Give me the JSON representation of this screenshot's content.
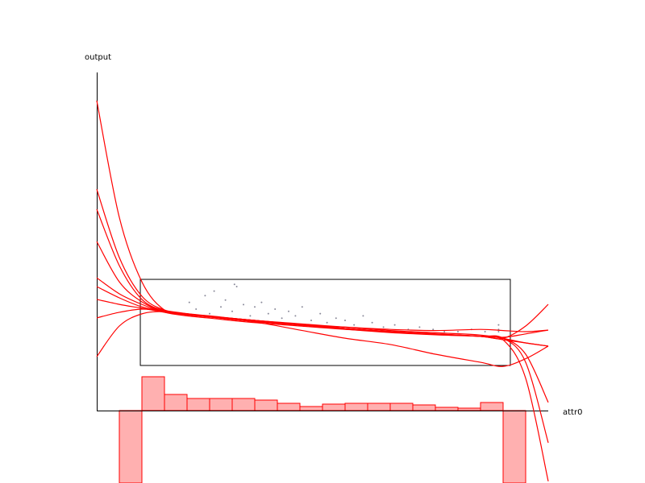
{
  "chart_data": {
    "type": "line",
    "x_label": "attr0",
    "y_label": "output",
    "xlim": [
      -1,
      19
    ],
    "ylim": [
      0,
      15
    ],
    "x": [
      -1,
      0,
      1,
      2,
      3,
      4,
      6,
      8,
      10,
      12,
      14,
      16,
      17,
      18,
      19
    ],
    "line_color": "#ff0000",
    "series": [
      {
        "values": [
          13.75,
          8.57,
          5.71,
          4.46,
          4.29,
          4.18,
          4.0,
          3.82,
          3.64,
          3.5,
          3.39,
          3.29,
          3.14,
          1.43,
          -3.14
        ]
      },
      {
        "values": [
          9.82,
          6.79,
          5.07,
          4.46,
          4.29,
          4.18,
          4.0,
          3.79,
          3.61,
          3.46,
          3.36,
          3.29,
          3.21,
          2.14,
          -1.43
        ]
      },
      {
        "values": [
          8.93,
          6.43,
          4.93,
          4.43,
          4.29,
          4.18,
          4.0,
          3.82,
          3.64,
          3.5,
          3.39,
          3.29,
          3.21,
          2.5,
          0.36
        ]
      },
      {
        "values": [
          7.5,
          5.71,
          4.82,
          4.39,
          4.25,
          4.15,
          3.95,
          3.8,
          3.64,
          3.5,
          3.39,
          3.29,
          3.14,
          3.0,
          2.86
        ]
      },
      {
        "values": [
          5.89,
          5.18,
          4.71,
          4.36,
          4.2,
          4.1,
          3.9,
          3.75,
          3.6,
          3.5,
          3.4,
          3.29,
          3.21,
          3.75,
          4.71
        ]
      },
      {
        "values": [
          4.93,
          4.71,
          4.54,
          4.36,
          4.25,
          4.15,
          3.95,
          3.8,
          3.64,
          3.5,
          3.4,
          3.3,
          3.25,
          3.4,
          3.57
        ]
      },
      {
        "values": [
          4.11,
          4.36,
          4.5,
          4.43,
          4.3,
          4.2,
          4.0,
          3.85,
          3.7,
          3.55,
          3.45,
          3.35,
          3.2,
          3.0,
          2.86
        ]
      },
      {
        "values": [
          2.39,
          3.75,
          4.29,
          4.39,
          4.29,
          4.18,
          3.93,
          3.57,
          3.21,
          2.93,
          2.5,
          2.14,
          1.96,
          2.3,
          2.86
        ]
      },
      {
        "values": [
          5.5,
          5.0,
          4.6,
          4.4,
          4.25,
          4.15,
          3.95,
          3.8,
          3.7,
          3.6,
          3.55,
          3.6,
          3.55,
          3.5,
          3.57
        ]
      }
    ],
    "scatter": {
      "color": "#8a8a9a",
      "x": [
        3.1,
        3.4,
        3.8,
        4.0,
        4.2,
        4.5,
        4.7,
        5.0,
        5.2,
        5.5,
        5.8,
        6.0,
        6.3,
        6.6,
        6.9,
        7.2,
        7.5,
        7.8,
        8.1,
        8.5,
        8.9,
        9.2,
        9.6,
        10.0,
        10.4,
        10.8,
        11.2,
        11.7,
        12.2,
        12.8,
        13.3,
        13.9,
        14.4,
        15.0,
        15.6,
        16.2,
        16.8,
        16.8,
        16.8,
        5.1
      ],
      "y": [
        4.8,
        4.5,
        5.1,
        4.3,
        5.3,
        4.6,
        4.9,
        4.4,
        5.5,
        4.7,
        4.2,
        4.6,
        4.8,
        4.3,
        4.5,
        4.1,
        4.4,
        4.2,
        4.6,
        4.0,
        4.3,
        3.9,
        4.1,
        4.0,
        3.8,
        4.2,
        3.9,
        3.7,
        3.8,
        3.6,
        3.7,
        3.6,
        3.5,
        3.5,
        3.6,
        3.5,
        3.5,
        3.6,
        3.8,
        5.6
      ]
    },
    "data_box": {
      "x": [
        0.93,
        17.32
      ],
      "y": [
        2.0,
        5.82
      ]
    },
    "histogram": {
      "fill": "#ffb0b0",
      "stroke": "#ff0000",
      "ylim": [
        -90,
        420
      ],
      "bins": [
        0,
        1,
        2,
        3,
        4,
        5,
        6,
        7,
        8,
        9,
        10,
        11,
        12,
        13,
        14,
        15,
        16,
        17,
        18
      ],
      "counts": [
        -90,
        42,
        20,
        15,
        15,
        15,
        13,
        9,
        5,
        8,
        9,
        9,
        9,
        7,
        4,
        3,
        10,
        -90
      ]
    }
  }
}
